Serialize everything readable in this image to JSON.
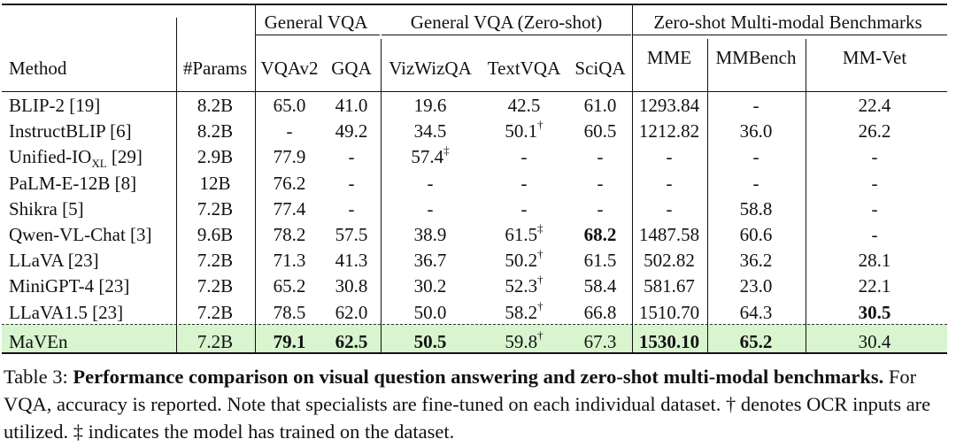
{
  "header": {
    "groups": [
      {
        "label": "General VQA"
      },
      {
        "label": "General VQA (Zero-shot)"
      },
      {
        "label": "Zero-shot Multi-modal Benchmarks"
      }
    ],
    "columns": [
      "Method",
      "#Params",
      "VQAv2",
      "GQA",
      "VizWizQA",
      "TextVQA",
      "SciQA",
      "MME",
      "MMBench",
      "MM-Vet"
    ]
  },
  "rows": [
    {
      "method": "BLIP-2 [19]",
      "sub": "",
      "ref": "",
      "params": "8.2B",
      "vqav2": "65.0",
      "gqa": "41.0",
      "vizwiz": "19.6",
      "textvqa": "42.5",
      "textvqa_mark": "",
      "sciqa": "61.0",
      "mme": "1293.84",
      "mmbench": "-",
      "mmvet": "22.4"
    },
    {
      "method": "InstructBLIP [6]",
      "sub": "",
      "ref": "",
      "params": "8.2B",
      "vqav2": "-",
      "gqa": "49.2",
      "vizwiz": "34.5",
      "textvqa": "50.1",
      "textvqa_mark": "†",
      "sciqa": "60.5",
      "mme": "1212.82",
      "mmbench": "36.0",
      "mmvet": "26.2"
    },
    {
      "method": "Unified-IO",
      "sub": "XL",
      "ref": " [29]",
      "params": "2.9B",
      "vqav2": "77.9",
      "gqa": "-",
      "vizwiz": "57.4",
      "vizwiz_mark": "‡",
      "textvqa": "-",
      "textvqa_mark": "",
      "sciqa": "-",
      "mme": "-",
      "mmbench": "-",
      "mmvet": "-"
    },
    {
      "method": "PaLM-E-12B [8]",
      "sub": "",
      "ref": "",
      "params": "12B",
      "vqav2": "76.2",
      "gqa": "-",
      "vizwiz": "-",
      "textvqa": "-",
      "textvqa_mark": "",
      "sciqa": "-",
      "mme": "-",
      "mmbench": "-",
      "mmvet": "-"
    },
    {
      "method": "Shikra [5]",
      "sub": "",
      "ref": "",
      "params": "7.2B",
      "vqav2": "77.4",
      "gqa": "-",
      "vizwiz": "-",
      "textvqa": "-",
      "textvqa_mark": "",
      "sciqa": "-",
      "mme": "-",
      "mmbench": "58.8",
      "mmvet": "-"
    },
    {
      "method": "Qwen-VL-Chat [3]",
      "sub": "",
      "ref": "",
      "params": "9.6B",
      "vqav2": "78.2",
      "gqa": "57.5",
      "vizwiz": "38.9",
      "textvqa": "61.5",
      "textvqa_mark": "‡",
      "sciqa": "68.2",
      "mme": "1487.58",
      "mmbench": "60.6",
      "mmvet": "-"
    },
    {
      "method": "LLaVA [23]",
      "sub": "",
      "ref": "",
      "params": "7.2B",
      "vqav2": "71.3",
      "gqa": "41.3",
      "vizwiz": "36.7",
      "textvqa": "50.2",
      "textvqa_mark": "†",
      "sciqa": "61.5",
      "mme": "502.82",
      "mmbench": "36.2",
      "mmvet": "28.1"
    },
    {
      "method": "MiniGPT-4 [23]",
      "sub": "",
      "ref": "",
      "params": "7.2B",
      "vqav2": "65.2",
      "gqa": "30.8",
      "vizwiz": "30.2",
      "textvqa": "52.3",
      "textvqa_mark": "†",
      "sciqa": "58.4",
      "mme": "581.67",
      "mmbench": "23.0",
      "mmvet": "22.1"
    },
    {
      "method": "LLaVA1.5 [23]",
      "sub": "",
      "ref": "",
      "params": "7.2B",
      "vqav2": "78.5",
      "gqa": "62.0",
      "vizwiz": "50.0",
      "textvqa": "58.2",
      "textvqa_mark": "†",
      "sciqa": "66.8",
      "mme": "1510.70",
      "mmbench": "64.3",
      "mmvet": "30.5"
    },
    {
      "method": "MaVEn",
      "sub": "",
      "ref": "",
      "params": "7.2B",
      "vqav2": "79.1",
      "gqa": "62.5",
      "vizwiz": "50.5",
      "textvqa": "59.8",
      "textvqa_mark": "†",
      "sciqa": "67.3",
      "mme": "1530.10",
      "mmbench": "65.2",
      "mmvet": "30.4"
    }
  ],
  "bold_cells": [
    "5.sciqa",
    "8.mmvet",
    "9.vqav2",
    "9.gqa",
    "9.vizwiz",
    "9.mme",
    "9.mmbench"
  ],
  "highlight_color": "#d8f5cf",
  "caption": {
    "label": "Table 3: ",
    "title": "Performance comparison on visual question answering and zero-shot multi-modal benchmarks.",
    "body": " For VQA, accuracy is reported. Note that specialists are fine-tuned on each individual dataset. † denotes OCR inputs are utilized. ‡ indicates the model has trained on the dataset."
  }
}
